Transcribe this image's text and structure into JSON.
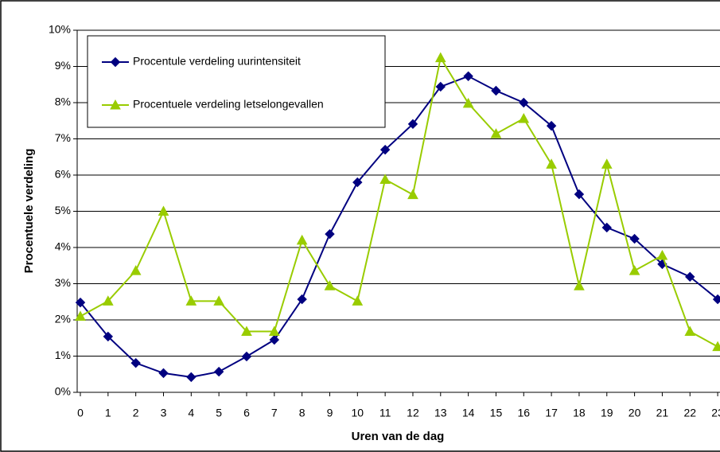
{
  "chart_data": {
    "type": "line",
    "x_label": "Uren van de dag",
    "y_label": "Procentuele verdeling",
    "categories": [
      "0",
      "1",
      "2",
      "3",
      "4",
      "5",
      "6",
      "7",
      "8",
      "9",
      "10",
      "11",
      "12",
      "13",
      "14",
      "15",
      "16",
      "17",
      "18",
      "19",
      "20",
      "21",
      "22",
      "23"
    ],
    "series": [
      {
        "name": "Procentule verdeling uurintensiteit",
        "color": "#000080",
        "marker": "diamond",
        "values": [
          2.48,
          1.54,
          0.81,
          0.53,
          0.42,
          0.57,
          0.99,
          1.45,
          2.57,
          4.37,
          5.8,
          6.7,
          7.41,
          8.44,
          8.73,
          8.33,
          8.0,
          7.36,
          5.47,
          4.55,
          4.24,
          3.54,
          3.19,
          2.57
        ]
      },
      {
        "name": "Procentuele verdeling letselongevallen",
        "color": "#99cc00",
        "marker": "triangle",
        "values": [
          2.1,
          2.52,
          3.36,
          5.0,
          2.52,
          2.52,
          1.68,
          1.68,
          4.2,
          2.94,
          2.52,
          5.88,
          5.46,
          9.24,
          7.98,
          7.14,
          7.56,
          6.3,
          2.94,
          6.3,
          3.36,
          3.78,
          1.68,
          1.26
        ]
      }
    ],
    "ylim": [
      0,
      10
    ],
    "yticks": [
      {
        "value": 0,
        "label": "0%"
      },
      {
        "value": 1,
        "label": "1%"
      },
      {
        "value": 2,
        "label": "2%"
      },
      {
        "value": 3,
        "label": "3%"
      },
      {
        "value": 4,
        "label": "4%"
      },
      {
        "value": 5,
        "label": "5%"
      },
      {
        "value": 6,
        "label": "6%"
      },
      {
        "value": 7,
        "label": "7%"
      },
      {
        "value": 8,
        "label": "8%"
      },
      {
        "value": 9,
        "label": "9%"
      },
      {
        "value": 10,
        "label": "10%"
      }
    ],
    "grid": true
  }
}
